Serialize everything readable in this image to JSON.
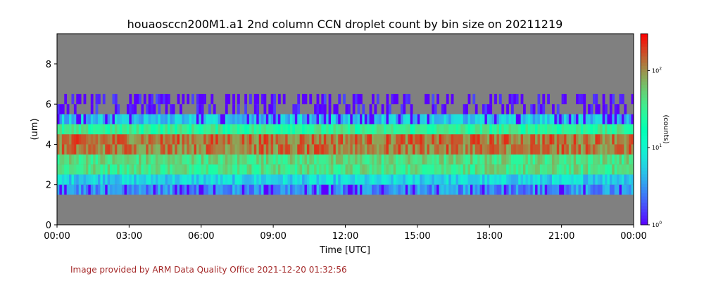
{
  "chart_data": {
    "type": "heatmap",
    "title": "houaosccn200M1.a1 2nd column CCN droplet count by bin size on 20211219",
    "xlabel": "Time [UTC]",
    "ylabel": "(um)",
    "x_tick_labels": [
      "00:00",
      "03:00",
      "06:00",
      "09:00",
      "12:00",
      "15:00",
      "18:00",
      "21:00",
      "00:00"
    ],
    "x_range_hours": [
      0,
      24
    ],
    "y_ticks": [
      0,
      2,
      4,
      6,
      8
    ],
    "ylim": [
      0,
      9.5
    ],
    "colorbar": {
      "label": "(counts)",
      "scale": "log",
      "range": [
        1,
        300
      ],
      "tick_labels": [
        "10^0",
        "10^1",
        "10^2"
      ],
      "tick_values": [
        1,
        10,
        100
      ],
      "colormap": "rainbow"
    },
    "missing_color": "#808080",
    "bin_profile": [
      {
        "y_from": 1.5,
        "y_to": 2.0,
        "typical_count": 3
      },
      {
        "y_from": 2.0,
        "y_to": 2.5,
        "typical_count": 6
      },
      {
        "y_from": 2.5,
        "y_to": 3.0,
        "typical_count": 40
      },
      {
        "y_from": 3.0,
        "y_to": 3.5,
        "typical_count": 45
      },
      {
        "y_from": 3.5,
        "y_to": 4.0,
        "typical_count": 120
      },
      {
        "y_from": 4.0,
        "y_to": 4.5,
        "typical_count": 130
      },
      {
        "y_from": 4.5,
        "y_to": 5.0,
        "typical_count": 30
      },
      {
        "y_from": 5.0,
        "y_to": 5.5,
        "typical_count": 5
      },
      {
        "y_from": 5.5,
        "y_to": 6.0,
        "typical_count": 1
      },
      {
        "y_from": 6.0,
        "y_to": 6.5,
        "typical_count": 1
      }
    ]
  },
  "footer": {
    "credit": "Image provided by ARM Data Quality Office 2021-12-20 01:32:56"
  }
}
